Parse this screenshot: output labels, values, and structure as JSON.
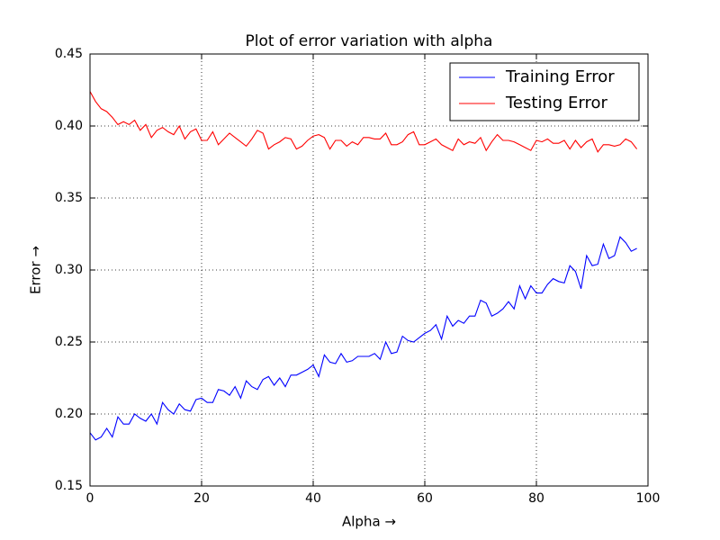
{
  "chart_data": {
    "type": "line",
    "title": "Plot of error variation with alpha",
    "x_label": "Alpha →",
    "y_label": "Error →",
    "x": [
      0,
      1,
      2,
      3,
      4,
      5,
      6,
      7,
      8,
      9,
      10,
      11,
      12,
      13,
      14,
      15,
      16,
      17,
      18,
      19,
      20,
      21,
      22,
      23,
      24,
      25,
      26,
      27,
      28,
      29,
      30,
      31,
      32,
      33,
      34,
      35,
      36,
      37,
      38,
      39,
      40,
      41,
      42,
      43,
      44,
      45,
      46,
      47,
      48,
      49,
      50,
      51,
      52,
      53,
      54,
      55,
      56,
      57,
      58,
      59,
      60,
      61,
      62,
      63,
      64,
      65,
      66,
      67,
      68,
      69,
      70,
      71,
      72,
      73,
      74,
      75,
      76,
      77,
      78,
      79,
      80,
      81,
      82,
      83,
      84,
      85,
      86,
      87,
      88,
      89,
      90,
      91,
      92,
      93,
      94,
      95,
      96,
      97,
      98
    ],
    "series": [
      {
        "name": "Training Error",
        "color": "#0000ff",
        "values": [
          0.187,
          0.182,
          0.184,
          0.19,
          0.184,
          0.198,
          0.193,
          0.193,
          0.2,
          0.197,
          0.195,
          0.2,
          0.193,
          0.208,
          0.203,
          0.2,
          0.207,
          0.203,
          0.202,
          0.21,
          0.211,
          0.208,
          0.208,
          0.217,
          0.216,
          0.213,
          0.219,
          0.211,
          0.223,
          0.219,
          0.217,
          0.224,
          0.226,
          0.22,
          0.225,
          0.219,
          0.227,
          0.227,
          0.229,
          0.231,
          0.234,
          0.226,
          0.241,
          0.236,
          0.235,
          0.242,
          0.236,
          0.237,
          0.24,
          0.24,
          0.24,
          0.242,
          0.238,
          0.25,
          0.242,
          0.243,
          0.254,
          0.251,
          0.25,
          0.253,
          0.256,
          0.258,
          0.262,
          0.252,
          0.268,
          0.261,
          0.265,
          0.263,
          0.268,
          0.268,
          0.279,
          0.277,
          0.268,
          0.27,
          0.273,
          0.278,
          0.273,
          0.289,
          0.28,
          0.289,
          0.284,
          0.284,
          0.29,
          0.294,
          0.292,
          0.291,
          0.303,
          0.299,
          0.287,
          0.31,
          0.303,
          0.304,
          0.318,
          0.308,
          0.31,
          0.323,
          0.319,
          0.313,
          0.315
        ]
      },
      {
        "name": "Testing Error",
        "color": "#ff0000",
        "values": [
          0.424,
          0.417,
          0.412,
          0.41,
          0.406,
          0.401,
          0.403,
          0.401,
          0.404,
          0.397,
          0.401,
          0.392,
          0.397,
          0.399,
          0.396,
          0.394,
          0.4,
          0.391,
          0.396,
          0.398,
          0.39,
          0.39,
          0.396,
          0.387,
          0.391,
          0.395,
          0.392,
          0.389,
          0.386,
          0.391,
          0.397,
          0.395,
          0.384,
          0.387,
          0.389,
          0.392,
          0.391,
          0.384,
          0.386,
          0.39,
          0.393,
          0.394,
          0.392,
          0.384,
          0.39,
          0.39,
          0.386,
          0.389,
          0.387,
          0.392,
          0.392,
          0.391,
          0.391,
          0.395,
          0.387,
          0.387,
          0.389,
          0.394,
          0.396,
          0.387,
          0.387,
          0.389,
          0.391,
          0.387,
          0.385,
          0.383,
          0.391,
          0.387,
          0.389,
          0.388,
          0.392,
          0.383,
          0.389,
          0.394,
          0.39,
          0.39,
          0.389,
          0.387,
          0.385,
          0.383,
          0.39,
          0.389,
          0.391,
          0.388,
          0.388,
          0.39,
          0.384,
          0.39,
          0.385,
          0.389,
          0.391,
          0.382,
          0.387,
          0.387,
          0.386,
          0.387,
          0.391,
          0.389,
          0.384
        ]
      }
    ],
    "xlim": [
      0,
      100
    ],
    "xticks": [
      0,
      20,
      40,
      60,
      80,
      100
    ],
    "ylim": [
      0.15,
      0.45
    ],
    "yticks": [
      0.15,
      {
        "value": 0.2,
        "label": "0.20"
      },
      0.25,
      {
        "value": 0.3,
        "label": "0.30"
      },
      0.35,
      {
        "value": 0.4,
        "label": "0.40"
      },
      0.45
    ],
    "grid": true,
    "legend_position": "upper-right"
  }
}
